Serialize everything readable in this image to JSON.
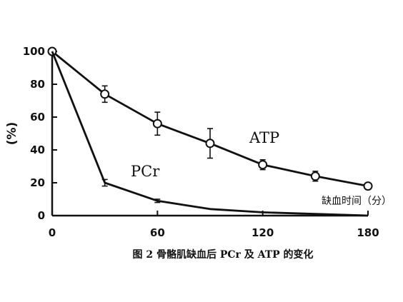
{
  "chart_data": {
    "type": "line",
    "title": "",
    "caption": "图 2 骨骼肌缺血后 PCr 及 ATP 的变化",
    "xlabel": "缺血时间（分）",
    "ylabel": "(%)",
    "xlim": [
      0,
      180
    ],
    "ylim": [
      0,
      100
    ],
    "xticks": [
      "0",
      "60",
      "120",
      "180"
    ],
    "yticks": [
      "0",
      "20",
      "40",
      "60",
      "80",
      "100"
    ],
    "grid": false,
    "series": [
      {
        "name": "ATP",
        "marker": "open-circle",
        "x": [
          0,
          30,
          60,
          90,
          120,
          150,
          180
        ],
        "y": [
          100,
          74,
          56,
          44,
          31,
          24,
          18
        ],
        "err": [
          0,
          5,
          7,
          9,
          3,
          3,
          0
        ]
      },
      {
        "name": "PCr",
        "marker": "none",
        "x": [
          0,
          30,
          60,
          90,
          120,
          150,
          180
        ],
        "y": [
          100,
          20,
          9,
          4,
          2,
          1,
          0
        ],
        "err": [
          0,
          2,
          1,
          0,
          0,
          0,
          0
        ]
      }
    ]
  }
}
